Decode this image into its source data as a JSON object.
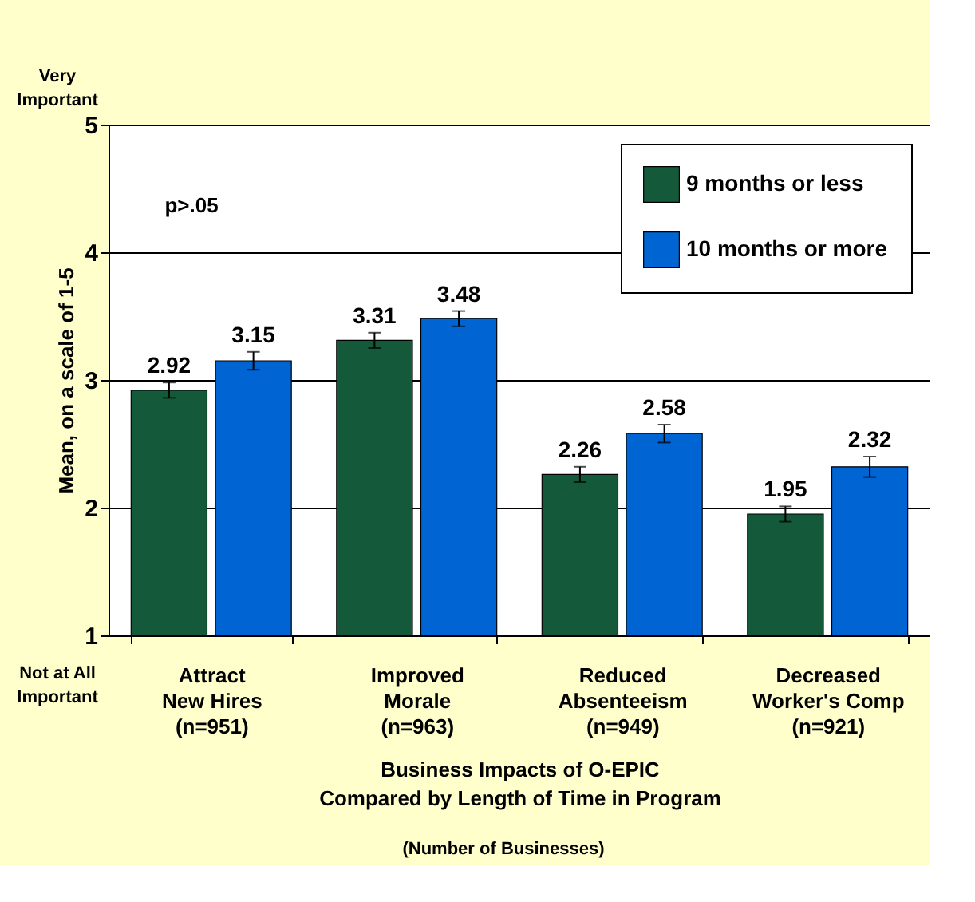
{
  "chart_data": {
    "type": "bar",
    "categories": [
      "Attract\nNew Hires\n(n=951)",
      "Improved\nMorale\n(n=963)",
      "Reduced\nAbsenteeism\n(n=949)",
      "Decreased\nWorker's Comp\n(n=921)"
    ],
    "series": [
      {
        "name": "9 months or less",
        "color": "#145a3a",
        "values": [
          2.92,
          3.31,
          2.26,
          1.95
        ],
        "errors": [
          0.06,
          0.06,
          0.06,
          0.06
        ]
      },
      {
        "name": "10 months or more",
        "color": "#0064d2",
        "values": [
          3.15,
          3.48,
          2.58,
          2.32
        ],
        "errors": [
          0.07,
          0.06,
          0.07,
          0.08
        ]
      }
    ],
    "xlabel": "Business Impacts of O-EPIC\nCompared by Length of Time in Program",
    "ylabel": "Mean, on a scale of 1-5",
    "ylim": [
      1,
      5
    ],
    "yticks": [
      1,
      2,
      3,
      4,
      5
    ],
    "grid": "y",
    "legend": "top right",
    "data_labels": true,
    "annotations": [
      "Very\nImportant",
      "Not at All\nImportant",
      "p>.05",
      "(Number of Businesses)"
    ]
  }
}
